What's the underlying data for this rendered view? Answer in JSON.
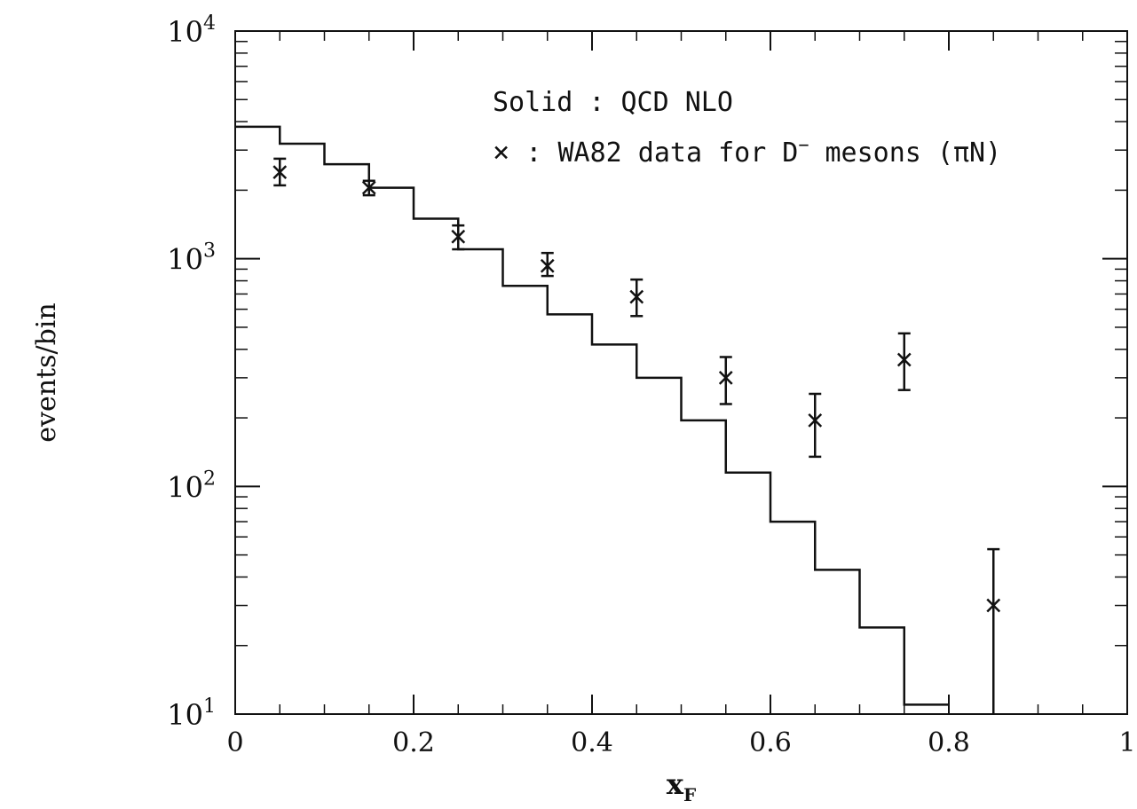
{
  "chart_data": {
    "type": "scatter",
    "xlabel": "x",
    "xlabel_sub": "F",
    "ylabel": "events/bin",
    "xlim": [
      0,
      1
    ],
    "ylim": [
      10,
      10000
    ],
    "yscale": "log",
    "grid": false,
    "legend_position": "top-right",
    "x_ticks": [
      0,
      0.2,
      0.4,
      0.6,
      0.8,
      1
    ],
    "x_tick_labels": [
      "0",
      "0.2",
      "0.4",
      "0.6",
      "0.8",
      "1"
    ],
    "y_ticks": [
      10,
      100,
      1000,
      10000
    ],
    "y_tick_base": "10",
    "y_tick_exponents": [
      "1",
      "2",
      "3",
      "4"
    ],
    "legend": {
      "line1": "Solid : QCD NLO",
      "line2_symbol": "×",
      "line2_text": " : WA82 data for D",
      "line2_sup": "−",
      "line2_rest": " mesons (πN)"
    },
    "series": [
      {
        "style": "histogram",
        "bin_edges": [
          0,
          0.05,
          0.1,
          0.15,
          0.2,
          0.25,
          0.3,
          0.35,
          0.4,
          0.45,
          0.5,
          0.55,
          0.6,
          0.65,
          0.7,
          0.75,
          0.8
        ],
        "values": [
          3800,
          3200,
          2600,
          2050,
          1500,
          1100,
          760,
          570,
          420,
          300,
          195,
          115,
          70,
          43,
          24,
          11
        ]
      },
      {
        "style": "points",
        "x": [
          0.05,
          0.15,
          0.25,
          0.35,
          0.45,
          0.55,
          0.65,
          0.75,
          0.85
        ],
        "y": [
          2400,
          2050,
          1250,
          930,
          680,
          300,
          195,
          360,
          30
        ],
        "y_low": [
          2100,
          1900,
          1100,
          840,
          560,
          230,
          135,
          265,
          10
        ],
        "y_high": [
          2750,
          2200,
          1400,
          1060,
          810,
          370,
          255,
          470,
          53
        ]
      }
    ]
  }
}
